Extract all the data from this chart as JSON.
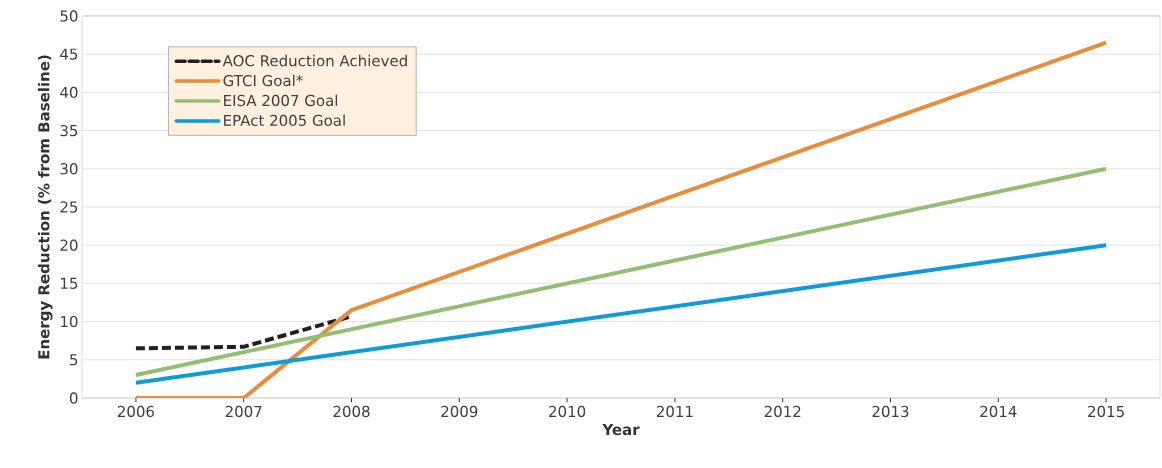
{
  "chart_data": {
    "type": "line",
    "xlabel": "Year",
    "ylabel": "Energy Reduction (% from Baseline)",
    "xlim": [
      2005.5,
      2015.5
    ],
    "xticks": [
      2006,
      2007,
      2008,
      2009,
      2010,
      2011,
      2012,
      2013,
      2014,
      2015
    ],
    "ylim": [
      0,
      50
    ],
    "yticks": [
      0,
      5,
      10,
      15,
      20,
      25,
      30,
      35,
      40,
      45,
      50
    ],
    "grid": "y",
    "legend": "top left",
    "series": [
      {
        "name": "AOC Reduction Achieved",
        "color": "#231f20",
        "line_style": "dashed",
        "x": [
          2006,
          2007,
          2008
        ],
        "values": [
          6.5,
          6.7,
          10.7
        ]
      },
      {
        "name": "GTCI Goal*",
        "color": "#e58e3e",
        "line_style": "solid",
        "x": [
          2006,
          2007,
          2008,
          2015
        ],
        "values": [
          0,
          0,
          11.5,
          46.5
        ]
      },
      {
        "name": "EISA 2007 Goal",
        "color": "#93bf75",
        "line_style": "solid",
        "x": [
          2006,
          2015
        ],
        "values": [
          3,
          30
        ]
      },
      {
        "name": "EPAct 2005 Goal",
        "color": "#0f9ad8",
        "line_style": "solid",
        "x": [
          2006,
          2015
        ],
        "values": [
          2,
          20
        ]
      }
    ]
  }
}
